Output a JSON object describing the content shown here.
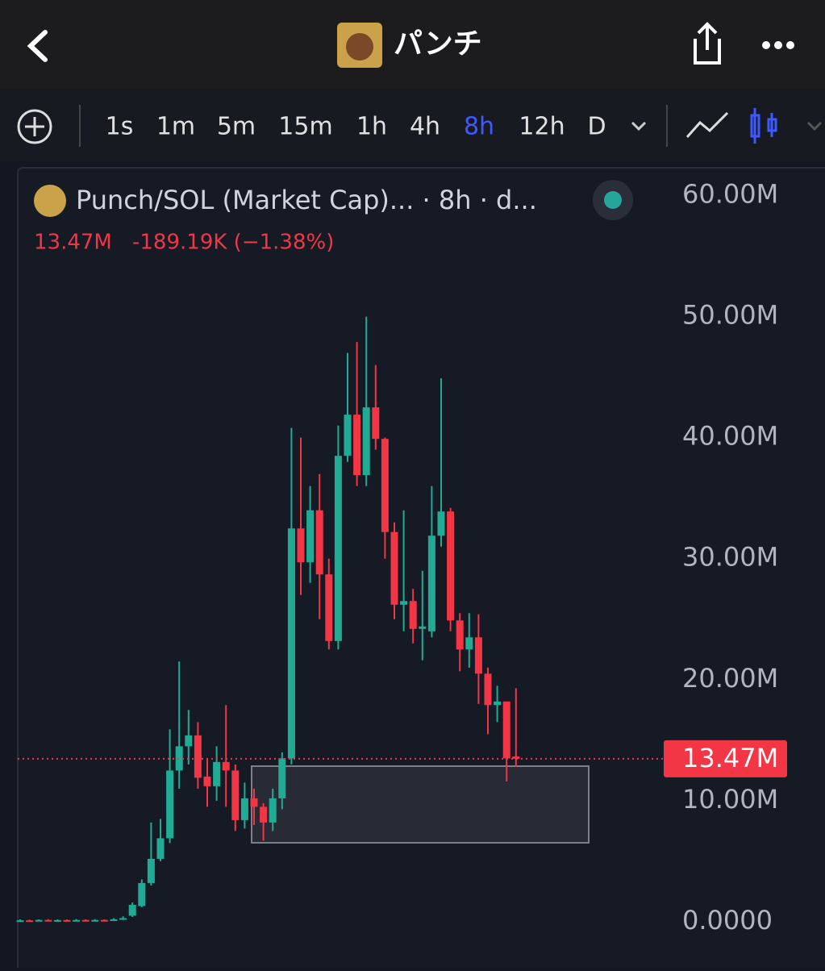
{
  "header": {
    "title": "パンチ"
  },
  "toolbar": {
    "timeframes": [
      "1s",
      "1m",
      "5m",
      "15m",
      "1h",
      "4h",
      "8h",
      "12h",
      "D"
    ],
    "active": "8h"
  },
  "legend": {
    "symbol": "Punch/SOL (Market Cap)... · 8h · d...",
    "price": "13.47M",
    "change": "-189.19K (−1.38%)"
  },
  "chart_data": {
    "type": "candlestick",
    "open": [
      0.1,
      0.12,
      0.1,
      0.15,
      0.12,
      0.14,
      0.12,
      0.15,
      0.13,
      0.15,
      0.14,
      0.2,
      0.5,
      1.3,
      3.2,
      5.2,
      6.9,
      12.5,
      14.5,
      15.4,
      12,
      11.2,
      13.2,
      12.5,
      8.4,
      10.2,
      9.5,
      8.2,
      10.2,
      13.5,
      32.5,
      29.7,
      34,
      28.7,
      23.2,
      38.5,
      41.9,
      36.9,
      42.5,
      39.9,
      32.2,
      26.2,
      26.5,
      24.2,
      24,
      31.9,
      33.9,
      24.9,
      22.5,
      23.5,
      20.5,
      17.9,
      18.2,
      13.66
    ],
    "high": [
      0.2,
      0.18,
      0.2,
      0.22,
      0.2,
      0.2,
      0.22,
      0.2,
      0.22,
      0.2,
      0.3,
      0.45,
      1.6,
      3.5,
      8.2,
      8.5,
      15.9,
      21.5,
      17.5,
      16.5,
      13.5,
      14.5,
      17.9,
      13,
      11.5,
      11,
      9.8,
      11,
      14,
      40.8,
      40,
      36,
      37,
      30,
      41,
      47,
      47.9,
      50,
      46,
      40,
      33,
      34,
      27.5,
      29,
      36,
      44.9,
      34.2,
      25.5,
      25.5,
      25.4,
      21,
      19.5,
      18.2,
      19.3
    ],
    "low": [
      0.05,
      0.05,
      0.06,
      0.08,
      0.07,
      0.08,
      0.07,
      0.08,
      0.09,
      0.08,
      0.1,
      0.15,
      0.4,
      1.2,
      3,
      5,
      6.5,
      11,
      13,
      11,
      9.5,
      10,
      9.5,
      7.5,
      7.7,
      8,
      6.7,
      7.5,
      9.3,
      13,
      27,
      28,
      25,
      22.5,
      22.5,
      38,
      36,
      36,
      39,
      30,
      25,
      24,
      23,
      21.6,
      23.5,
      31,
      24,
      20.7,
      21,
      18,
      15.5,
      16.5,
      11.6,
      12.8
    ],
    "close": [
      0.12,
      0.1,
      0.15,
      0.12,
      0.14,
      0.12,
      0.15,
      0.13,
      0.15,
      0.14,
      0.2,
      0.3,
      1.4,
      3.2,
      5.2,
      6.9,
      12.5,
      14.5,
      15.4,
      11.9,
      11.2,
      13.2,
      12.5,
      8.4,
      10.2,
      9.5,
      8.2,
      10.2,
      13.5,
      32.5,
      29.7,
      34,
      28.7,
      23.2,
      38.5,
      41.9,
      36.9,
      42.5,
      39.9,
      32.2,
      26.2,
      26.5,
      24.2,
      24.4,
      31.9,
      33.9,
      24.9,
      22.5,
      23.5,
      20.5,
      17.9,
      18.2,
      13.5,
      13.47
    ],
    "up_color": "#22ab94",
    "down_color": "#f23645",
    "ylim": [
      -3.8,
      62.5
    ],
    "yticks": [
      {
        "value": 0,
        "label": "0.0000"
      },
      {
        "value": 10,
        "label": "10.00M"
      },
      {
        "value": 20,
        "label": "20.00M"
      },
      {
        "value": 30,
        "label": "30.00M"
      },
      {
        "value": 40,
        "label": "40.00M"
      },
      {
        "value": 50,
        "label": "50.00M"
      },
      {
        "value": 60,
        "label": "60.00M"
      }
    ],
    "last_price": {
      "value": 13.47,
      "label": "13.47M"
    }
  }
}
